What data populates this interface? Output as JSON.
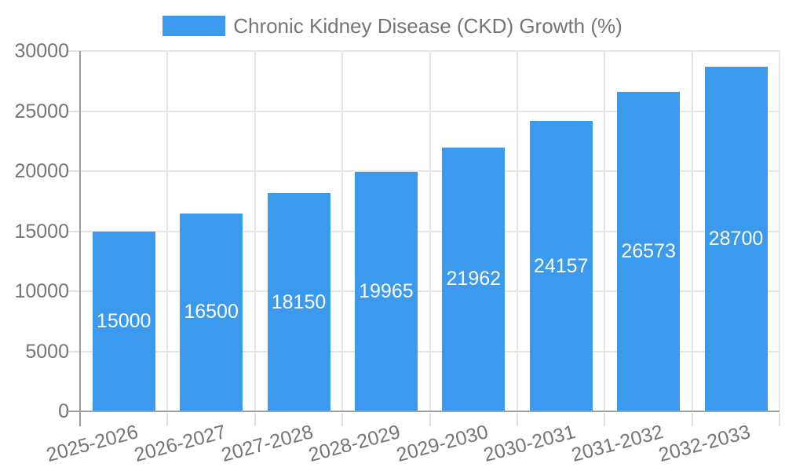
{
  "chart_data": {
    "type": "bar",
    "title": "Chronic Kidney Disease (CKD) Growth (%)",
    "legend_position": "top",
    "categories": [
      "2025-2026",
      "2026-2027",
      "2027-2028",
      "2028-2029",
      "2029-2030",
      "2030-2031",
      "2031-2032",
      "2032-2033"
    ],
    "series": [
      {
        "name": "Chronic Kidney Disease (CKD) Growth (%)",
        "values": [
          15000,
          16500,
          18150,
          19965,
          21962,
          24157,
          26573,
          28700
        ]
      }
    ],
    "bar_labels": [
      "15000",
      "16500",
      "18150",
      "19965",
      "21962",
      "24157",
      "26573",
      "28700"
    ],
    "xlabel": "",
    "ylabel": "",
    "ylim": [
      0,
      30000
    ],
    "yticks": [
      0,
      5000,
      10000,
      15000,
      20000,
      25000,
      30000
    ],
    "ytick_labels": [
      "0",
      "5000",
      "10000",
      "15000",
      "20000",
      "25000",
      "30000"
    ],
    "grid": true
  },
  "colors": {
    "bar": "#3B9AEE",
    "axis_text": "#757575",
    "bar_label_text": "#ffffff",
    "grid_line": "#e6e6e6",
    "tick_line": "#e0e0e0",
    "axis_line": "#9e9e9e",
    "background": "#ffffff"
  }
}
